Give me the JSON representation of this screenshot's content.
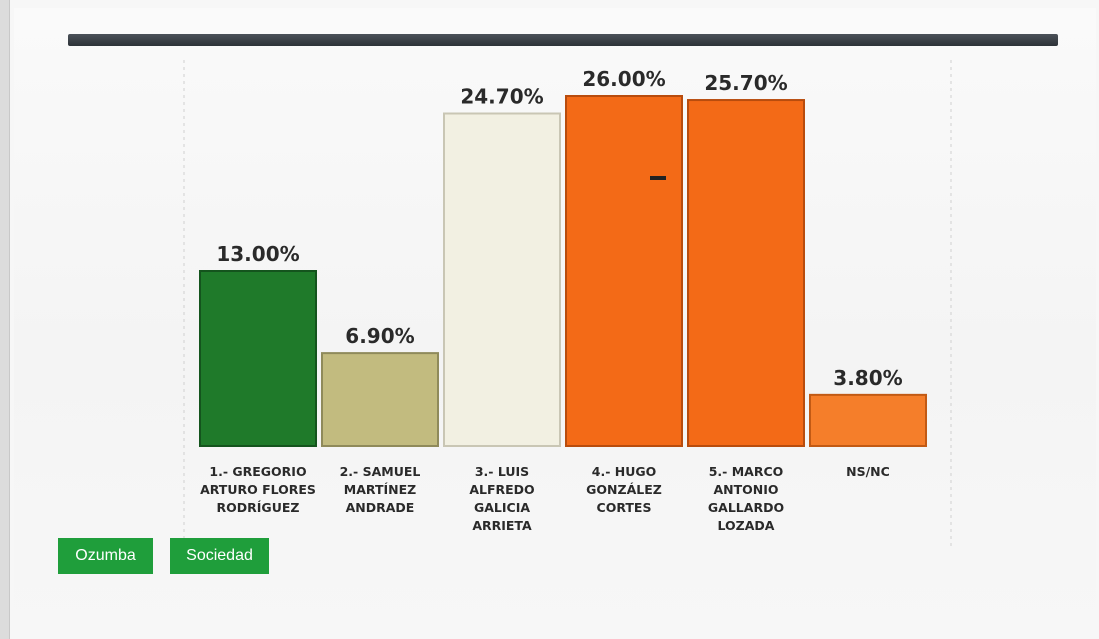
{
  "chart_data": {
    "type": "bar",
    "categories": [
      "1.- GREGORIO ARTURO FLORES RODRÍGUEZ",
      "2.- SAMUEL MARTÍNEZ ANDRADE",
      "3.- LUIS ALFREDO GALICIA ARRIETA",
      "4.- HUGO GONZÁLEZ CORTES",
      "5.- MARCO ANTONIO GALLARDO LOZADA",
      "NS/NC"
    ],
    "category_lines": [
      [
        "1.- GREGORIO",
        "ARTURO FLORES",
        "RODRÍGUEZ"
      ],
      [
        "2.- SAMUEL",
        "MARTÍNEZ",
        "ANDRADE"
      ],
      [
        "3.- LUIS",
        "ALFREDO",
        "GALICIA",
        "ARRIETA"
      ],
      [
        "4.- HUGO",
        "GONZÁLEZ",
        "CORTES"
      ],
      [
        "5.- MARCO",
        "ANTONIO",
        "GALLARDO",
        "LOZADA"
      ],
      [
        "NS/NC"
      ]
    ],
    "values": [
      13.0,
      6.9,
      24.7,
      26.0,
      25.7,
      3.8
    ],
    "value_labels": [
      "13.00%",
      "6.90%",
      "24.70%",
      "26.00%",
      "25.70%",
      "3.80%"
    ],
    "colors": [
      "#1f7a2a",
      "#c2bb7f",
      "#f2f0e2",
      "#f36a17",
      "#f36a17",
      "#f57e2a"
    ],
    "stroke_colors": [
      "#14541d",
      "#8f8a5a",
      "#c9c6b4",
      "#b84c0d",
      "#b84c0d",
      "#c25a14"
    ],
    "ylim": [
      0,
      30
    ],
    "grid": false,
    "title": "",
    "xlabel": "",
    "ylabel": ""
  },
  "tags": {
    "items": [
      {
        "label": "Ozumba",
        "color": "#1f9e3b"
      },
      {
        "label": "Sociedad",
        "color": "#1f9e3b"
      }
    ]
  }
}
